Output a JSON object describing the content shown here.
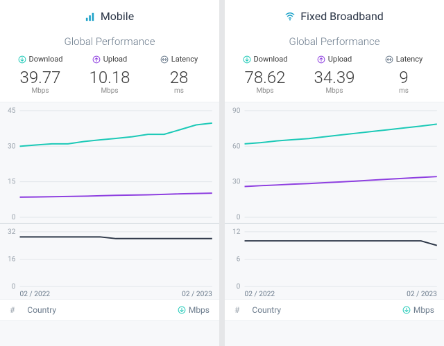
{
  "panels": [
    {
      "key": "mobile",
      "icon": "cellular",
      "icon_color": "#1fa3c9",
      "title": "Mobile",
      "subtitle": "Global Performance",
      "metrics": {
        "download": {
          "label": "Download",
          "value": "39.77",
          "unit": "Mbps",
          "icon_color": "#1cc9b7"
        },
        "upload": {
          "label": "Upload",
          "value": "10.18",
          "unit": "Mbps",
          "icon_color": "#8e3fe0"
        },
        "latency": {
          "label": "Latency",
          "value": "28",
          "unit": "ms",
          "icon_color": "#6b7b8c"
        }
      },
      "chart_top": {
        "type": "line",
        "ylim": [
          0,
          45
        ],
        "yticks": [
          0,
          15,
          30,
          45
        ],
        "n_points": 13,
        "grid_color": "#e2e6ea",
        "background_color": "#f7f8fa",
        "series": [
          {
            "name": "download",
            "color": "#1cc9b7",
            "width": 2,
            "values": [
              30,
              30.5,
              31,
              31,
              32,
              32.7,
              33.3,
              34,
              35,
              35,
              37,
              39,
              39.77
            ]
          },
          {
            "name": "upload",
            "color": "#8e3fe0",
            "width": 2,
            "values": [
              8.5,
              8.6,
              8.7,
              8.8,
              8.9,
              9.1,
              9.3,
              9.4,
              9.5,
              9.7,
              9.9,
              10.05,
              10.18
            ]
          }
        ]
      },
      "chart_bottom": {
        "type": "line",
        "ylim": [
          0,
          32
        ],
        "yticks": [
          0,
          16,
          32
        ],
        "xticks": [
          "02 / 2022",
          "02 / 2023"
        ],
        "n_points": 13,
        "grid_color": "#e2e6ea",
        "background_color": "#f7f8fa",
        "series": [
          {
            "name": "latency",
            "color": "#2d3748",
            "width": 2,
            "values": [
              29,
              29,
              29,
              29,
              29,
              29,
              28,
              28,
              28,
              28,
              28,
              28,
              28
            ]
          }
        ]
      },
      "footer": {
        "hash": "#",
        "country": "Country",
        "unit": "Mbps",
        "unit_icon_color": "#1cc9b7"
      }
    },
    {
      "key": "broadband",
      "icon": "wifi",
      "icon_color": "#1fa3c9",
      "title": "Fixed Broadband",
      "subtitle": "Global Performance",
      "metrics": {
        "download": {
          "label": "Download",
          "value": "78.62",
          "unit": "Mbps",
          "icon_color": "#1cc9b7"
        },
        "upload": {
          "label": "Upload",
          "value": "34.39",
          "unit": "Mbps",
          "icon_color": "#8e3fe0"
        },
        "latency": {
          "label": "Latency",
          "value": "9",
          "unit": "ms",
          "icon_color": "#6b7b8c"
        }
      },
      "chart_top": {
        "type": "line",
        "ylim": [
          0,
          90
        ],
        "yticks": [
          0,
          30,
          60,
          90
        ],
        "n_points": 13,
        "grid_color": "#e2e6ea",
        "background_color": "#f7f8fa",
        "series": [
          {
            "name": "download",
            "color": "#1cc9b7",
            "width": 2,
            "values": [
              62,
              63,
              64.5,
              65.5,
              66.5,
              68,
              69.5,
              71,
              72.5,
              74,
              75.5,
              77,
              78.62
            ]
          },
          {
            "name": "upload",
            "color": "#8e3fe0",
            "width": 2,
            "values": [
              26,
              26.7,
              27.3,
              28,
              28.5,
              29.2,
              29.9,
              30.6,
              31.4,
              32.2,
              33,
              33.7,
              34.39
            ]
          }
        ]
      },
      "chart_bottom": {
        "type": "line",
        "ylim": [
          0,
          12
        ],
        "yticks": [
          0,
          6,
          12
        ],
        "xticks": [
          "02 / 2022",
          "02 / 2023"
        ],
        "n_points": 13,
        "grid_color": "#e2e6ea",
        "background_color": "#f7f8fa",
        "series": [
          {
            "name": "latency",
            "color": "#2d3748",
            "width": 2,
            "values": [
              10,
              10,
              10,
              10,
              10,
              10,
              10,
              10,
              10,
              10,
              10,
              10,
              9
            ]
          }
        ]
      },
      "footer": {
        "hash": "#",
        "country": "Country",
        "unit": "Mbps",
        "unit_icon_color": "#1cc9b7"
      }
    }
  ]
}
